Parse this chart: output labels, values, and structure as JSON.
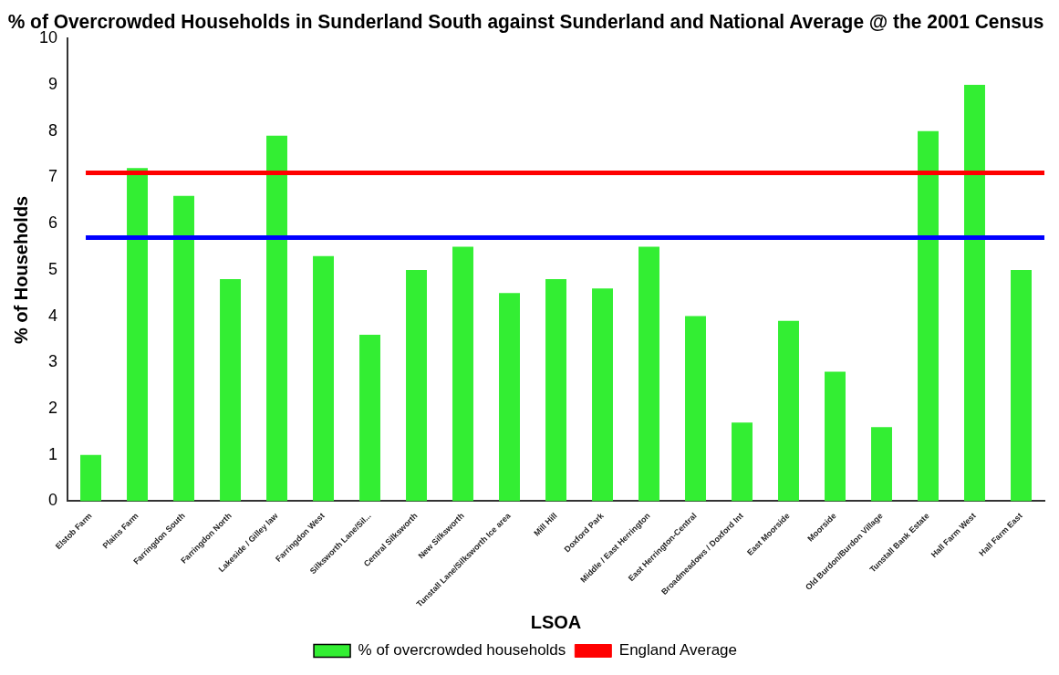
{
  "chart_data": {
    "type": "bar",
    "title": "% of Overcrowded Households in Sunderland South against Sunderland and National Average @ the 2001 Census",
    "xlabel": "LSOA",
    "ylabel": "% of Households",
    "categories": [
      "Elstob Farm",
      "Plains Farm",
      "Farringdon South",
      "Farringdon North",
      "Lakeside / Gilley law",
      "Farringdon West",
      "Silksworth Lane/Sil...",
      "Central Silksworth",
      "New Silksworth",
      "Tunstall Lane/Silksworth Ice area",
      "Mill Hill",
      "Doxford Park",
      "Middle / East Herrington",
      "East Herrington-Central",
      "Broadmeadows / Doxford Int",
      "East Moorside",
      "Moorside",
      "Old Burdon/Burdon Village",
      "Tunstall Bank Estate",
      "Hall Farm West",
      "Hall Farm East"
    ],
    "series": [
      {
        "name": "% of overcrowded households",
        "color": "#33ee33",
        "values": [
          1.0,
          7.2,
          6.6,
          4.8,
          7.9,
          5.3,
          3.6,
          5.0,
          5.5,
          4.5,
          4.8,
          4.6,
          5.5,
          4.0,
          1.7,
          3.9,
          2.8,
          1.6,
          8.0,
          9.0,
          5.0
        ]
      }
    ],
    "ref_lines": [
      {
        "axis": "y",
        "value": 7.1,
        "label": "England Average",
        "color": "#ff0000"
      },
      {
        "axis": "y",
        "value": 5.7,
        "color": "#0000ff"
      }
    ],
    "ylim": [
      0,
      10
    ],
    "yticks": [
      0,
      1,
      2,
      3,
      4,
      5,
      6,
      7,
      8,
      9,
      10
    ],
    "grid": false,
    "legend": "bottom"
  }
}
